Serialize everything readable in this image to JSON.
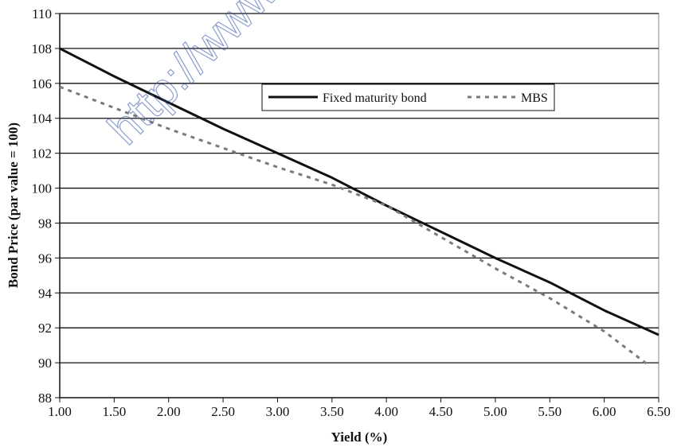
{
  "watermark": "http://www",
  "chart_data": {
    "type": "line",
    "title": "",
    "xlabel": "Yield (%)",
    "ylabel": "Bond Price (par value = 100)",
    "xlim": [
      1.0,
      6.5
    ],
    "ylim": [
      88,
      110
    ],
    "x_ticks": [
      "1.00",
      "1.50",
      "2.00",
      "2.50",
      "3.00",
      "3.50",
      "4.00",
      "4.50",
      "5.00",
      "5.50",
      "6.00",
      "6.50"
    ],
    "y_ticks": [
      "88",
      "90",
      "92",
      "94",
      "96",
      "98",
      "100",
      "102",
      "104",
      "106",
      "108",
      "110"
    ],
    "grid": "horizontal",
    "legend_position": "top-center",
    "series": [
      {
        "name": "Fixed maturity bond",
        "style": "solid",
        "color": "#111111",
        "x": [
          1.0,
          1.5,
          2.0,
          2.5,
          3.0,
          3.5,
          4.0,
          4.5,
          5.0,
          5.5,
          6.0,
          6.5
        ],
        "y": [
          108.0,
          106.4,
          104.9,
          103.4,
          102.0,
          100.6,
          99.0,
          97.5,
          96.0,
          94.6,
          93.0,
          91.6
        ]
      },
      {
        "name": "MBS",
        "style": "dotted",
        "color": "#7a7a7a",
        "x": [
          1.0,
          1.5,
          2.0,
          2.5,
          3.0,
          3.5,
          4.0,
          4.5,
          5.0,
          5.5,
          6.0,
          6.4
        ],
        "y": [
          105.8,
          104.6,
          103.4,
          102.3,
          101.2,
          100.2,
          99.0,
          97.2,
          95.4,
          93.7,
          91.8,
          89.9
        ]
      }
    ]
  }
}
